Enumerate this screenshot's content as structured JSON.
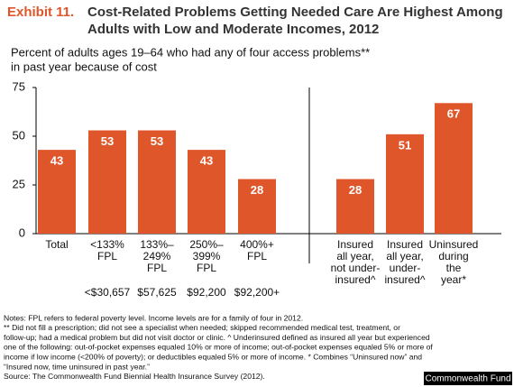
{
  "chart_data": {
    "type": "bar",
    "title_label": "Exhibit 11.",
    "title": [
      "Cost-Related Problems Getting Needed Care Are Highest Among",
      "Adults with Low and Moderate Incomes, 2012"
    ],
    "subtitle": [
      "Percent of adults ages 19–64 who had any of four access problems**",
      "in past year because of cost"
    ],
    "categories": [
      "Total",
      "<133%\nFPL",
      "133%–\n249%\nFPL",
      "250%–\n399%\nFPL",
      "400%+\nFPL",
      "Insured\nall year,\nnot under-\ninsured^",
      "Insured\nall year,\nunder-\ninsured^",
      "Uninsured\nduring\nthe\nyear*"
    ],
    "income_levels": [
      null,
      "<$30,657",
      "$57,625",
      "$92,200",
      "$92,200+",
      null,
      null,
      null
    ],
    "values": [
      43,
      53,
      53,
      43,
      28,
      28,
      51,
      67
    ],
    "color": "#e0562b",
    "ylim": [
      0,
      75
    ],
    "yticks": [
      0,
      25,
      50,
      75
    ],
    "notes": [
      "Notes: FPL refers to federal poverty level. Income levels are for a family of four in 2012.",
      "** Did not fill a prescription; did not see a specialist when needed; skipped recommended medical test, treatment, or",
      "follow-up; had a medical problem but did not visit doctor or clinic. ^ Underinsured defined as insured all year but experienced",
      "one of the following: out-of-pocket expenses equaled 10% or more of income; out-of-pocket expenses equaled 5% or more of",
      "income if low income (<200% of poverty); or deductibles equaled 5% or more of income. * Combines “Uninsured now” and",
      "“Insured now, time uninsured in past year.”",
      "Source: The Commonwealth Fund Biennial Health Insurance Survey (2012)."
    ],
    "badge": "Commonwealth Fund"
  }
}
